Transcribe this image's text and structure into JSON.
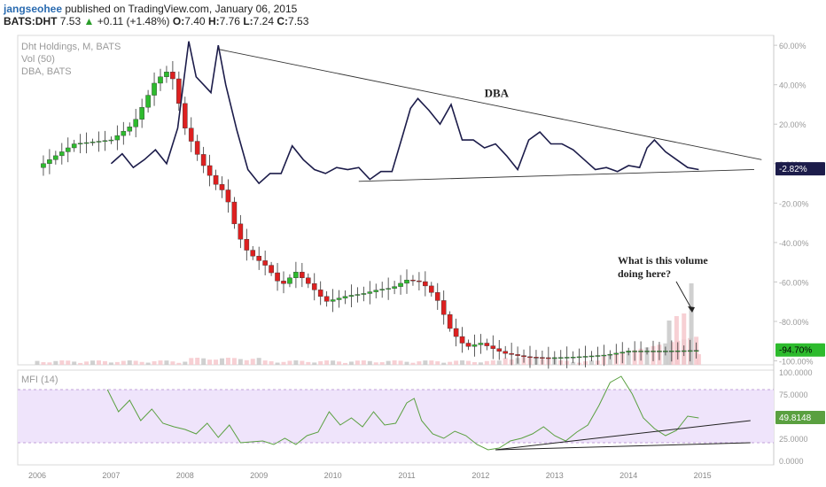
{
  "header": {
    "author": "jangseohee",
    "published_text": "published on TradingView.com, January 06, 2015",
    "symbol": "BATS:DHT",
    "last": "7.53",
    "change": "+0.11 (+1.48%)",
    "open_label": "O:",
    "open": "7.40",
    "high_label": "H:",
    "high": "7.76",
    "low_label": "L:",
    "low": "7.24",
    "close_label": "C:",
    "close": "7.53"
  },
  "legend": {
    "line1": "Dht Holdings, M, BATS",
    "line2": "Vol (50)",
    "line3": "DBA, BATS",
    "mfi": "MFI (14)"
  },
  "annotations": {
    "dba": "DBA",
    "volume_q1": "What is this volume",
    "volume_q2": "doing here?"
  },
  "chart_data": {
    "type": "line",
    "x_ticks": [
      "2006",
      "2007",
      "2008",
      "2009",
      "2010",
      "2011",
      "2012",
      "2013",
      "2014",
      "2015"
    ],
    "price_axis": {
      "ticks": [
        "60.00%",
        "40.00%",
        "20.00%",
        "0.00%",
        "-20.00%",
        "-40.00%",
        "-60.00%",
        "-80.00%",
        "-100.00%"
      ],
      "values": [
        60,
        40,
        20,
        0,
        -20,
        -40,
        -60,
        -80,
        -100
      ],
      "ylim": [
        -102,
        65
      ]
    },
    "dba_badge": "-2.82%",
    "dht_badge": "-94.70%",
    "mfi_axis": {
      "ticks": [
        "100.0000",
        "75.0000",
        "25.0000",
        "0.0000"
      ],
      "values": [
        100,
        75,
        25,
        0
      ],
      "ylim": [
        -5,
        102
      ],
      "band": [
        20,
        80
      ],
      "badge": "49.8148"
    },
    "series": [
      {
        "name": "DBA, BATS",
        "x": [
          2007.0,
          2007.15,
          2007.3,
          2007.45,
          2007.6,
          2007.75,
          2007.9,
          2008.05,
          2008.15,
          2008.25,
          2008.35,
          2008.45,
          2008.55,
          2008.7,
          2008.85,
          2009.0,
          2009.15,
          2009.3,
          2009.45,
          2009.6,
          2009.75,
          2009.9,
          2010.05,
          2010.2,
          2010.35,
          2010.5,
          2010.65,
          2010.8,
          2010.95,
          2011.05,
          2011.15,
          2011.3,
          2011.45,
          2011.6,
          2011.75,
          2011.9,
          2012.05,
          2012.2,
          2012.35,
          2012.5,
          2012.65,
          2012.8,
          2012.95,
          2013.1,
          2013.25,
          2013.4,
          2013.55,
          2013.7,
          2013.85,
          2014.0,
          2014.15,
          2014.25,
          2014.35,
          2014.5,
          2014.65,
          2014.8,
          2014.95
        ],
        "values": [
          0,
          5,
          -2,
          2,
          7,
          0,
          18,
          62,
          44,
          40,
          36,
          60,
          40,
          17,
          -3,
          -10,
          -5,
          -5,
          9,
          2,
          -3,
          -5,
          -2,
          -3,
          -2,
          -8,
          -4,
          -4,
          15,
          28,
          33,
          27,
          20,
          30,
          12,
          12,
          8,
          10,
          4,
          -3,
          12,
          16,
          10,
          10,
          7,
          2,
          -3,
          -2,
          -4,
          -1,
          -2,
          8,
          12,
          6,
          2,
          -2,
          -3
        ],
        "color": "#1c1c4a"
      },
      {
        "name": "MFI (14)",
        "x": [
          2006.95,
          2007.1,
          2007.25,
          2007.4,
          2007.55,
          2007.7,
          2007.85,
          2008.0,
          2008.15,
          2008.3,
          2008.45,
          2008.6,
          2008.75,
          2008.9,
          2009.05,
          2009.2,
          2009.35,
          2009.5,
          2009.65,
          2009.8,
          2009.95,
          2010.1,
          2010.25,
          2010.4,
          2010.55,
          2010.7,
          2010.85,
          2011.0,
          2011.1,
          2011.2,
          2011.35,
          2011.5,
          2011.65,
          2011.8,
          2011.95,
          2012.1,
          2012.25,
          2012.4,
          2012.55,
          2012.7,
          2012.85,
          2013.0,
          2013.15,
          2013.3,
          2013.45,
          2013.6,
          2013.75,
          2013.9,
          2014.05,
          2014.2,
          2014.35,
          2014.5,
          2014.65,
          2014.8,
          2014.95
        ],
        "values": [
          80,
          55,
          68,
          45,
          58,
          42,
          38,
          35,
          30,
          42,
          26,
          40,
          20,
          21,
          22,
          18,
          25,
          18,
          28,
          32,
          55,
          40,
          48,
          38,
          55,
          40,
          42,
          65,
          70,
          45,
          30,
          25,
          33,
          28,
          18,
          12,
          14,
          22,
          25,
          30,
          38,
          28,
          22,
          32,
          40,
          62,
          88,
          95,
          75,
          48,
          36,
          28,
          34,
          50,
          48
        ],
        "color": "#5aa040"
      }
    ],
    "dht_candles_note": "monthly candlesticks, percent change from start",
    "volume_note": "volume bars at bottom of price pane"
  }
}
